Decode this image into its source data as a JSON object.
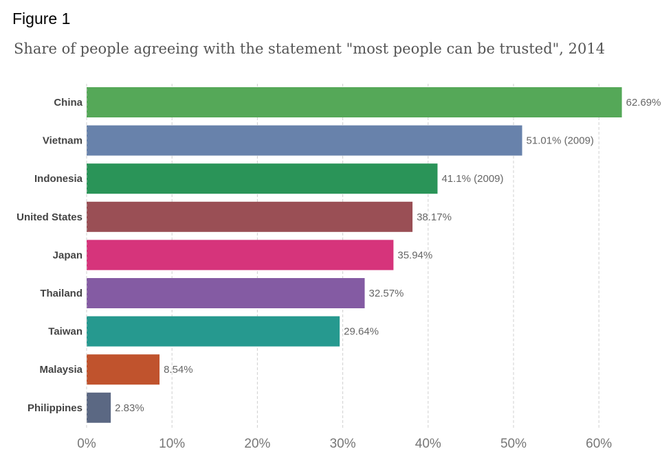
{
  "figure_label": "Figure 1",
  "chart_data": {
    "type": "bar",
    "orientation": "horizontal",
    "title": "Share of people agreeing with the statement \"most people can be trusted\", 2014",
    "categories": [
      "China",
      "Vietnam",
      "Indonesia",
      "United States",
      "Japan",
      "Thailand",
      "Taiwan",
      "Malaysia",
      "Philippines"
    ],
    "values": [
      62.69,
      51.01,
      41.1,
      38.17,
      35.94,
      32.57,
      29.64,
      8.54,
      2.83
    ],
    "labels": [
      "62.69%",
      "51.01% (2009)",
      "41.1% (2009)",
      "38.17%",
      "35.94%",
      "32.57%",
      "29.64%",
      "8.54%",
      "2.83%"
    ],
    "colors": [
      "#55a858",
      "#6882ab",
      "#2a9458",
      "#9a4f55",
      "#d6347b",
      "#845ba3",
      "#26998f",
      "#c0532d",
      "#5b6883"
    ],
    "xlim": [
      0,
      63
    ],
    "xticks": [
      0,
      10,
      20,
      30,
      40,
      50,
      60
    ],
    "xtick_labels": [
      "0%",
      "10%",
      "20%",
      "30%",
      "40%",
      "50%",
      "60%"
    ],
    "grid": true,
    "xlabel": "",
    "ylabel": ""
  }
}
